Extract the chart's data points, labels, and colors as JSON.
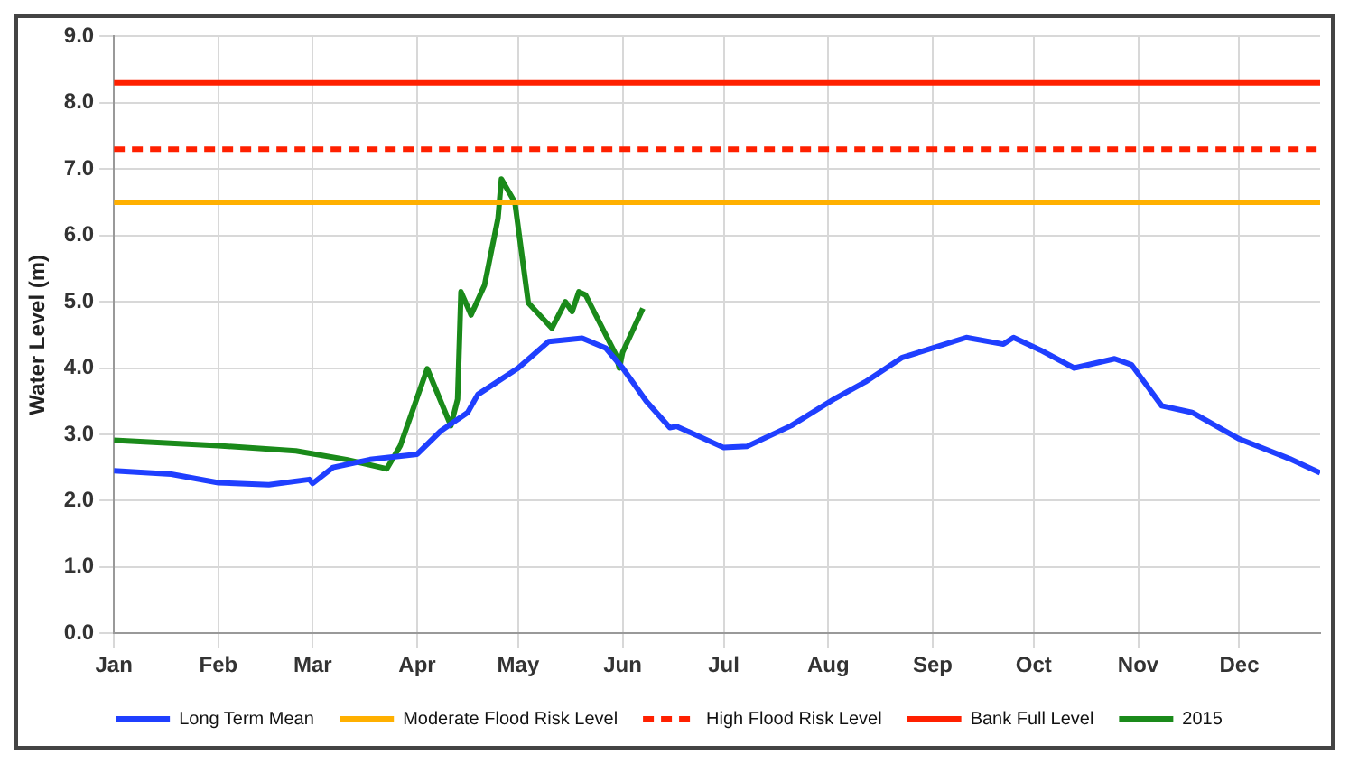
{
  "chart_data": {
    "type": "line",
    "ylabel": "Water Level (m)",
    "xlim": [
      "--01-01",
      "--12-25"
    ],
    "xticks": [
      {
        "value": "--01-01",
        "label": "Jan"
      },
      {
        "value": "--02-01",
        "label": "Feb"
      },
      {
        "value": "--03-01",
        "label": "Mar"
      },
      {
        "value": "--04-01",
        "label": "Apr"
      },
      {
        "value": "--05-01",
        "label": "May"
      },
      {
        "value": "--06-01",
        "label": "Jun"
      },
      {
        "value": "--07-01",
        "label": "Jul"
      },
      {
        "value": "--08-01",
        "label": "Aug"
      },
      {
        "value": "--09-01",
        "label": "Sep"
      },
      {
        "value": "--10-01",
        "label": "Oct"
      },
      {
        "value": "--11-01",
        "label": "Nov"
      },
      {
        "value": "--12-01",
        "label": "Dec"
      }
    ],
    "ylim": [
      0,
      9
    ],
    "yticks": [
      {
        "value": 0,
        "label": "0.0"
      },
      {
        "value": 1,
        "label": "1.0"
      },
      {
        "value": 2,
        "label": "2.0"
      },
      {
        "value": 3,
        "label": "3.0"
      },
      {
        "value": 4,
        "label": "4.0"
      },
      {
        "value": 5,
        "label": "5.0"
      },
      {
        "value": 6,
        "label": "6.0"
      },
      {
        "value": 7,
        "label": "7.0"
      },
      {
        "value": 8,
        "label": "8.0"
      },
      {
        "value": 9,
        "label": "9.0"
      }
    ],
    "grid": true,
    "legend": "bottom",
    "marker": "none",
    "line_style": "solid",
    "series": [
      {
        "name": "Long Term Mean",
        "color": "#1f3fff",
        "x": [
          "--01-01",
          "--01-18",
          "--02-01",
          "--02-16",
          "--02-28",
          "--03-01",
          "--03-07",
          "--03-18",
          "--04-01",
          "--04-08",
          "--04-16",
          "--04-19",
          "--05-01",
          "--05-10",
          "--05-20",
          "--05-27",
          "--06-01",
          "--06-08",
          "--06-15",
          "--06-17",
          "--07-01",
          "--07-08",
          "--07-21",
          "--08-03",
          "--08-12",
          "--08-23",
          "--09-01",
          "--09-11",
          "--09-22",
          "--09-25",
          "--10-03",
          "--10-13",
          "--10-25",
          "--10-30",
          "--11-08",
          "--11-17",
          "--12-01",
          "--12-16",
          "--12-25"
        ],
        "values": [
          2.45,
          2.4,
          2.27,
          2.24,
          2.32,
          2.26,
          2.5,
          2.62,
          2.7,
          3.05,
          3.33,
          3.6,
          4.0,
          4.4,
          4.45,
          4.3,
          4.0,
          3.5,
          3.1,
          3.12,
          2.8,
          2.82,
          3.13,
          3.54,
          3.79,
          4.16,
          4.3,
          4.46,
          4.36,
          4.46,
          4.27,
          4.0,
          4.14,
          4.05,
          3.43,
          3.33,
          2.93,
          2.63,
          2.42
        ]
      },
      {
        "name": "2015",
        "color": "#1a8a1a",
        "x": [
          "--01-01",
          "--02-01",
          "--02-24",
          "--03-11",
          "--03-23",
          "--03-27",
          "--04-04",
          "--04-11",
          "--04-13",
          "--04-14",
          "--04-17",
          "--04-21",
          "--04-25",
          "--04-26",
          "--04-30",
          "--05-04",
          "--05-11",
          "--05-15",
          "--05-17",
          "--05-19",
          "--05-21",
          "--05-30",
          "--05-31",
          "--06-01",
          "--06-07"
        ],
        "values": [
          2.91,
          2.83,
          2.75,
          2.62,
          2.48,
          2.83,
          3.99,
          3.13,
          3.53,
          5.15,
          4.8,
          5.25,
          6.26,
          6.85,
          6.5,
          4.98,
          4.6,
          5.0,
          4.85,
          5.15,
          5.1,
          4.2,
          4.0,
          4.24,
          4.9
        ]
      }
    ],
    "ref_lines": [
      {
        "axis": "y",
        "value": 6.5,
        "label": "Moderate Flood Risk Level",
        "color": "#ffb000",
        "line_style": "solid"
      },
      {
        "axis": "y",
        "value": 7.3,
        "label": "High Flood Risk Level",
        "color": "#ff2000",
        "line_style": "dashed"
      },
      {
        "axis": "y",
        "value": 8.3,
        "label": "Bank Full Level",
        "color": "#ff2000",
        "line_style": "solid"
      }
    ]
  }
}
